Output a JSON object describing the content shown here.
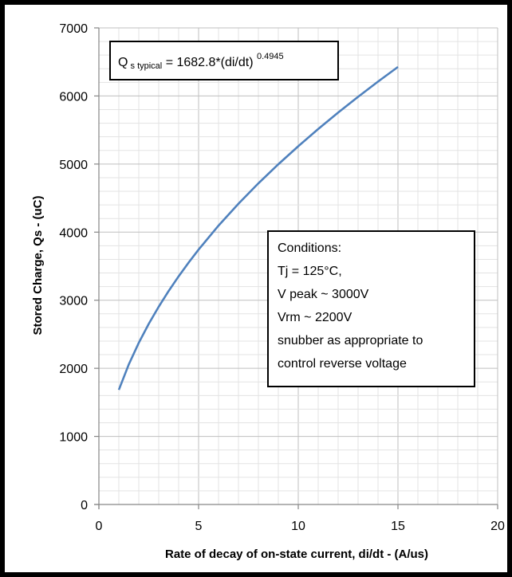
{
  "chart_data": {
    "type": "line",
    "xlabel": "Rate of decay of on-state current, di/dt - (A/us)",
    "ylabel": "Stored Charge,  Qs - (uC)",
    "xlim": [
      0,
      20
    ],
    "ylim": [
      0,
      7000
    ],
    "x_ticks": [
      "0",
      "5",
      "10",
      "15",
      "20"
    ],
    "y_ticks": [
      "0",
      "1000",
      "2000",
      "3000",
      "4000",
      "5000",
      "6000",
      "7000"
    ],
    "grid": true,
    "line_color": "#4f81bd",
    "series": [
      {
        "x": [
          1,
          1.5,
          2,
          2.5,
          3,
          3.5,
          4,
          4.5,
          5,
          6,
          7,
          8,
          9,
          10,
          11,
          12,
          13,
          14,
          15
        ],
        "values": [
          1683,
          2058,
          2374,
          2653,
          2904,
          3136,
          3351,
          3553,
          3744,
          4096,
          4418,
          4717,
          4997,
          5262,
          5515,
          5757,
          5987,
          6211,
          6426
        ]
      }
    ],
    "annotations": {
      "formula": {
        "q": "Q",
        "sub": " s typical",
        "mid": " = 1682.8*(di/dt) ",
        "sup": "0.4945"
      },
      "conditions": [
        "Conditions:",
        "Tj = 125°C,",
        "V peak ~ 3000V",
        "Vrm ~ 2200V",
        "snubber as appropriate to",
        "control reverse voltage"
      ]
    }
  }
}
